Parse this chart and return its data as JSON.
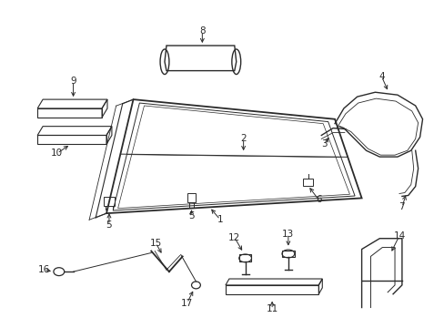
{
  "background_color": "#ffffff",
  "line_color": "#2a2a2a",
  "lw": 1.0,
  "fig_width": 4.89,
  "fig_height": 3.6,
  "dpi": 100,
  "font_size": 7.5
}
